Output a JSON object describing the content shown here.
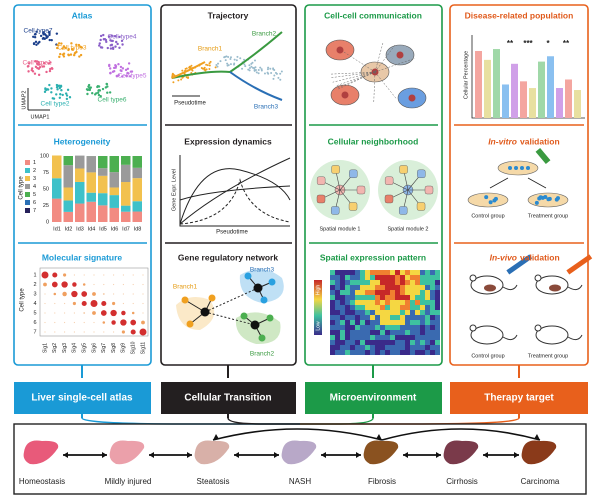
{
  "panels": [
    {
      "footer": "Liver single-cell atlas",
      "sections": [
        {
          "title": "Atlas",
          "labels": [
            "Cell type7",
            "Cell type3",
            "Cell type4",
            "Cell type1",
            "Cell type5",
            "Cell type2",
            "Cell type6",
            "UMAP2",
            "UMAP1"
          ]
        },
        {
          "title": "Heterogeneity",
          "yticks": [
            "100",
            "75",
            "50",
            "25",
            "0"
          ],
          "legend": [
            "1",
            "2",
            "3",
            "4",
            "5",
            "6",
            "7"
          ],
          "ylabel": "Cell type",
          "xlabels": [
            "Id1",
            "Id2",
            "Id3",
            "Id4",
            "Id5",
            "Id6",
            "Id7",
            "Id8"
          ]
        },
        {
          "title": "Molecular signature",
          "ylabel": "Cell type",
          "ylabels": [
            "1",
            "2",
            "3",
            "4",
            "5",
            "6",
            "7"
          ],
          "xlabels": [
            "Sig1",
            "Sig2",
            "Sig3",
            "Sig4",
            "Sig5",
            "Sig6",
            "Sig7",
            "Sig8",
            "Sig9",
            "Sig10",
            "Sig11"
          ]
        }
      ]
    },
    {
      "footer": "Cellular Transition",
      "sections": [
        {
          "title": "Trajectory",
          "labels": [
            "Branch1",
            "Branch2",
            "Branch3",
            "Pseudotime"
          ]
        },
        {
          "title": "Expression dynamics",
          "labels": [
            "Gene Expr. Level",
            "Pseudotime"
          ]
        },
        {
          "title": "Gene regulatory network",
          "labels": [
            "Branch3",
            "Branch1",
            "Branch2"
          ]
        }
      ]
    },
    {
      "footer": "Microenvironment",
      "sections": [
        {
          "title": "Cell-cell communication",
          "labels": []
        },
        {
          "title": "Cellular neighborhood",
          "labels": [
            "Spatial module 1",
            "Spatial module 2"
          ]
        },
        {
          "title": "Spatial expression pattern",
          "labels": [
            "High",
            "Low"
          ]
        }
      ]
    },
    {
      "footer": "Therapy target",
      "sections": [
        {
          "title": "Disease-related population",
          "labels": [
            "Cellular Percentage",
            "**",
            "***",
            "*",
            "**"
          ]
        },
        {
          "title_italic": "In-vitro",
          "title": "validation",
          "labels": [
            "Control group",
            "Treatment group"
          ]
        },
        {
          "title_italic": "In-vivo",
          "title": "validation",
          "labels": [
            "Control group",
            "Treatment group"
          ]
        }
      ]
    }
  ],
  "stages": [
    "Homeostasis",
    "Mildly injured",
    "Steatosis",
    "NASH",
    "Fibrosis",
    "Cirrhosis",
    "Carcinoma"
  ]
}
